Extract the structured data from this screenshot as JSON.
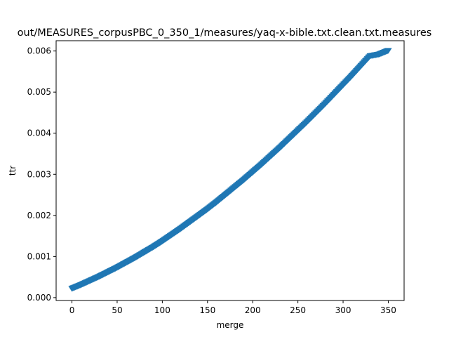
{
  "chart_data": {
    "type": "scatter",
    "title": "out/MEASURES_corpusPBC_0_350_1/measures/yaq-x-bible.txt.clean.txt.measures",
    "xlabel": "merge",
    "ylabel": "ttr",
    "xlim": [
      -17.5,
      367.5
    ],
    "ylim": [
      -7e-05,
      0.00625
    ],
    "xticks": [
      0,
      50,
      100,
      150,
      200,
      250,
      300,
      350
    ],
    "xtick_labels": [
      "0",
      "50",
      "100",
      "150",
      "200",
      "250",
      "300",
      "350"
    ],
    "yticks": [
      0.0,
      0.001,
      0.002,
      0.003,
      0.004,
      0.005,
      0.006
    ],
    "ytick_labels": [
      "0.000",
      "0.001",
      "0.002",
      "0.003",
      "0.004",
      "0.005",
      "0.006"
    ],
    "marker": "triangle-down",
    "color": "#1f77b4",
    "grid": false,
    "x": [
      0,
      10,
      20,
      30,
      40,
      50,
      60,
      70,
      80,
      90,
      100,
      110,
      120,
      130,
      140,
      150,
      160,
      170,
      180,
      190,
      200,
      210,
      220,
      230,
      240,
      250,
      260,
      270,
      280,
      290,
      300,
      310,
      320,
      330,
      340,
      350
    ],
    "y": [
      0.00023,
      0.00032,
      0.00042,
      0.00052,
      0.00063,
      0.00074,
      0.00086,
      0.00098,
      0.00111,
      0.00124,
      0.00138,
      0.00153,
      0.00168,
      0.00184,
      0.002,
      0.00216,
      0.00233,
      0.00251,
      0.00269,
      0.00287,
      0.00306,
      0.00325,
      0.00345,
      0.00365,
      0.00386,
      0.00407,
      0.00428,
      0.0045,
      0.00472,
      0.00495,
      0.00518,
      0.00541,
      0.00565,
      0.00589,
      0.00593,
      0.00602
    ]
  }
}
